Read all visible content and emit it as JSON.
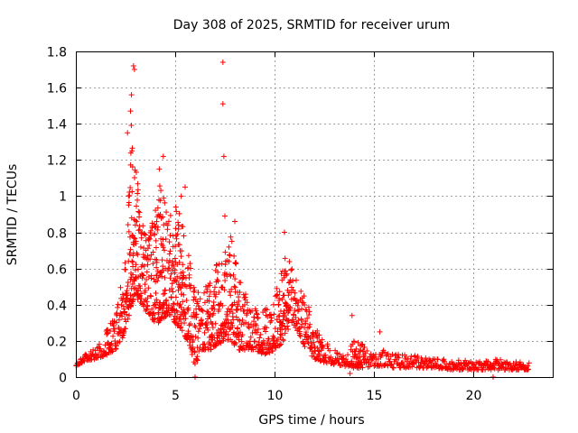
{
  "chart_data": {
    "type": "scatter",
    "title": "Day 308 of 2025, SRMTID for receiver urum",
    "xlabel": "GPS time / hours",
    "ylabel": "SRMTID / TECUs",
    "xlim": [
      0,
      24
    ],
    "ylim": [
      0,
      1.8
    ],
    "xticks": [
      0,
      5,
      10,
      15,
      20
    ],
    "xtick_labels": [
      "0",
      "5",
      "10",
      "15",
      "20"
    ],
    "yticks": [
      0,
      0.2,
      0.4,
      0.6,
      0.8,
      1.0,
      1.2,
      1.4,
      1.6,
      1.8
    ],
    "ytick_labels": [
      "0",
      "0.2",
      "0.4",
      "0.6",
      "0.8",
      "1",
      "1.2",
      "1.4",
      "1.6",
      "1.8"
    ],
    "grid": true,
    "marker": "+",
    "color": "#ff0000",
    "envelope": {
      "x": [
        0,
        0.5,
        1,
        1.5,
        2,
        2.3,
        2.6,
        2.8,
        3.0,
        3.3,
        3.6,
        4.0,
        4.3,
        4.6,
        5.0,
        5.4,
        5.8,
        6.0,
        6.3,
        6.7,
        7.0,
        7.4,
        7.8,
        8.2,
        8.6,
        9.0,
        9.5,
        10.0,
        10.5,
        10.8,
        11.2,
        11.6,
        12.0,
        12.5,
        13.0,
        13.5,
        14.0,
        14.5,
        15.0,
        15.5,
        16.0,
        17.0,
        18.0,
        19.0,
        20.0,
        21.0,
        22.0,
        22.8
      ],
      "low": [
        0.06,
        0.09,
        0.1,
        0.12,
        0.15,
        0.2,
        0.3,
        0.4,
        0.45,
        0.4,
        0.35,
        0.3,
        0.3,
        0.35,
        0.3,
        0.25,
        0.15,
        0.05,
        0.15,
        0.15,
        0.15,
        0.2,
        0.2,
        0.15,
        0.15,
        0.15,
        0.12,
        0.15,
        0.2,
        0.3,
        0.25,
        0.15,
        0.1,
        0.08,
        0.07,
        0.06,
        0.05,
        0.05,
        0.06,
        0.06,
        0.05,
        0.05,
        0.05,
        0.04,
        0.04,
        0.04,
        0.04,
        0.04
      ],
      "high": [
        0.08,
        0.13,
        0.17,
        0.25,
        0.35,
        0.55,
        0.9,
        1.4,
        1.2,
        0.9,
        0.75,
        0.95,
        1.1,
        0.9,
        0.95,
        0.9,
        0.6,
        0.5,
        0.45,
        0.55,
        0.6,
        0.7,
        0.8,
        0.55,
        0.45,
        0.4,
        0.4,
        0.45,
        0.7,
        0.65,
        0.5,
        0.45,
        0.3,
        0.2,
        0.15,
        0.13,
        0.2,
        0.18,
        0.15,
        0.15,
        0.13,
        0.12,
        0.1,
        0.1,
        0.09,
        0.1,
        0.09,
        0.09
      ]
    },
    "outliers": [
      {
        "x": 2.9,
        "y": 1.72
      },
      {
        "x": 2.95,
        "y": 1.7
      },
      {
        "x": 2.8,
        "y": 1.56
      },
      {
        "x": 2.75,
        "y": 1.47
      },
      {
        "x": 2.6,
        "y": 1.35
      },
      {
        "x": 4.4,
        "y": 1.22
      },
      {
        "x": 4.2,
        "y": 1.15
      },
      {
        "x": 5.5,
        "y": 1.05
      },
      {
        "x": 5.3,
        "y": 1.0
      },
      {
        "x": 7.4,
        "y": 1.74
      },
      {
        "x": 7.4,
        "y": 1.51
      },
      {
        "x": 7.45,
        "y": 1.22
      },
      {
        "x": 7.5,
        "y": 0.89
      },
      {
        "x": 8.0,
        "y": 0.86
      },
      {
        "x": 10.5,
        "y": 0.8
      },
      {
        "x": 13.9,
        "y": 0.34
      },
      {
        "x": 15.3,
        "y": 0.25
      },
      {
        "x": 6.0,
        "y": 0.0
      },
      {
        "x": 13.8,
        "y": 0.02
      },
      {
        "x": 21.0,
        "y": 0.0
      }
    ]
  }
}
